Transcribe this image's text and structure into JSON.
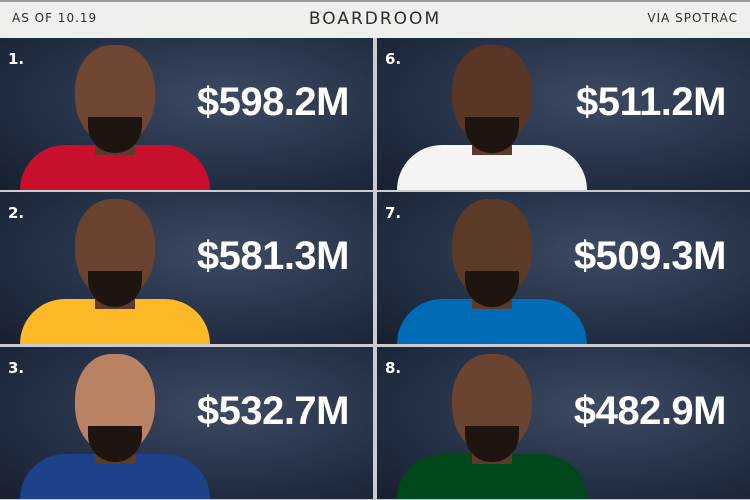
{
  "header": {
    "as_of": "AS OF 10.19",
    "title": "BOARDROOM",
    "source": "VIA SPOTRAC"
  },
  "entries": [
    {
      "rank": "1.",
      "amount": "$598.2M",
      "jersey": "#c8102e",
      "skin": "#6e4632"
    },
    {
      "rank": "2.",
      "amount": "$581.3M",
      "jersey": "#fdb927",
      "skin": "#6a4330"
    },
    {
      "rank": "3.",
      "amount": "$532.7M",
      "jersey": "#1d428a",
      "skin": "#b98263"
    },
    {
      "rank": "6.",
      "amount": "$511.2M",
      "jersey": "#f4f4f4",
      "skin": "#5a3626"
    },
    {
      "rank": "7.",
      "amount": "$509.3M",
      "jersey": "#006bb6",
      "skin": "#5c3a28"
    },
    {
      "rank": "8.",
      "amount": "$482.9M",
      "jersey": "#00471b",
      "skin": "#6a4431"
    }
  ]
}
